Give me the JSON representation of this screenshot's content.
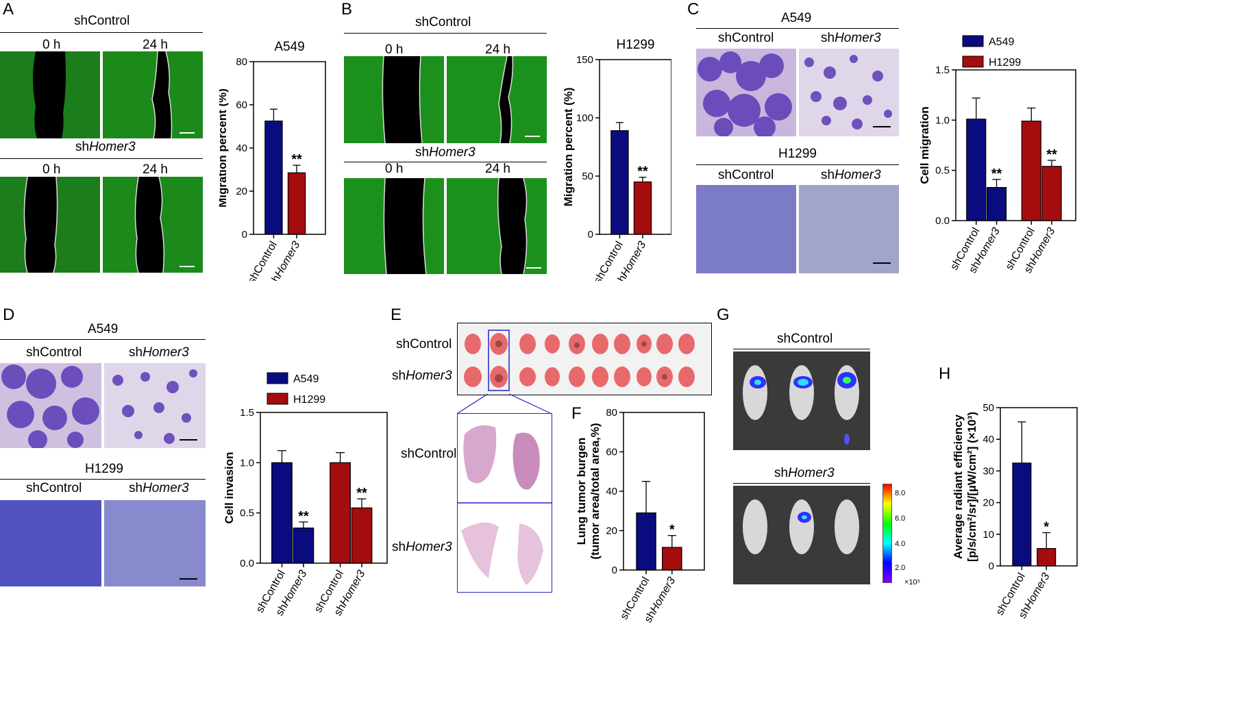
{
  "panels": {
    "A": {
      "letter": "A",
      "group1": "shControl",
      "group2_prefix": "sh",
      "group2_gene": "Homer3",
      "time0": "0 h",
      "time24": "24 h"
    },
    "B": {
      "letter": "B",
      "group1": "shControl",
      "group2_prefix": "sh",
      "group2_gene": "Homer3",
      "time0": "0 h",
      "time24": "24 h"
    },
    "C": {
      "letter": "C",
      "cell1": "A549",
      "cell2": "H1299",
      "group1": "shControl",
      "group2_prefix": "sh",
      "group2_gene": "Homer3"
    },
    "D": {
      "letter": "D",
      "cell1": "A549",
      "cell2": "H1299",
      "group1": "shControl",
      "group2_prefix": "sh",
      "group2_gene": "Homer3"
    },
    "E": {
      "letter": "E",
      "group1": "shControl",
      "group2_prefix": "sh",
      "group2_gene": "Homer3"
    },
    "F": {
      "letter": "F"
    },
    "G": {
      "letter": "G",
      "group1": "shControl",
      "group2_prefix": "sh",
      "group2_gene": "Homer3",
      "scale_ticks": [
        "8.0",
        "6.0",
        "4.0",
        "2.0"
      ],
      "scale_unit": "×10⁵"
    },
    "H": {
      "letter": "H"
    }
  },
  "colors": {
    "blue": "#0b0b80",
    "red": "#a30d0d",
    "green": "#28c428",
    "stain": "#5a3ab5"
  },
  "chart_data": [
    {
      "id": "A",
      "type": "bar",
      "title": "A549",
      "ylabel": "Migration percent (%)",
      "ylim": [
        0,
        80
      ],
      "yticks": [
        "0",
        "20",
        "40",
        "60",
        "80"
      ],
      "categories": [
        "shControl",
        "shHomer3"
      ],
      "series": [
        {
          "values": [
            52.5,
            28.5
          ],
          "errors": [
            5.5,
            3.5
          ]
        }
      ],
      "significance": [
        "",
        "**"
      ]
    },
    {
      "id": "B",
      "type": "bar",
      "title": "H1299",
      "ylabel": "Migration percent (%)",
      "ylim": [
        0,
        150
      ],
      "yticks": [
        "0",
        "50",
        "100",
        "150"
      ],
      "categories": [
        "shControl",
        "shHomer3"
      ],
      "series": [
        {
          "values": [
            89,
            45
          ],
          "errors": [
            7,
            4
          ]
        }
      ],
      "significance": [
        "",
        "**"
      ]
    },
    {
      "id": "C",
      "type": "bar",
      "title": "",
      "ylabel": "Cell migration",
      "ylim": [
        0,
        1.5
      ],
      "yticks": [
        "0.0",
        "0.5",
        "1.0",
        "1.5"
      ],
      "categories": [
        "shControl",
        "shHomer3",
        "shControl",
        "shHomer3"
      ],
      "legend": [
        "A549",
        "H1299"
      ],
      "series": [
        {
          "values": [
            1.01,
            0.33,
            0.99,
            0.54
          ],
          "errors": [
            0.21,
            0.08,
            0.13,
            0.06
          ]
        }
      ],
      "significance": [
        "",
        "**",
        "",
        "**"
      ]
    },
    {
      "id": "D",
      "type": "bar",
      "title": "",
      "ylabel": "Cell invasion",
      "ylim": [
        0,
        1.5
      ],
      "yticks": [
        "0.0",
        "0.5",
        "1.0",
        "1.5"
      ],
      "categories": [
        "shControl",
        "shHomer3",
        "shControl",
        "shHomer3"
      ],
      "legend": [
        "A549",
        "H1299"
      ],
      "series": [
        {
          "values": [
            1.0,
            0.35,
            1.0,
            0.55
          ],
          "errors": [
            0.12,
            0.06,
            0.1,
            0.09
          ]
        }
      ],
      "significance": [
        "",
        "**",
        "",
        "**"
      ]
    },
    {
      "id": "F",
      "type": "bar",
      "title": "",
      "ylabel": "Lung tumor burgen",
      "ylabel2": "(tumor area/total area,%)",
      "ylim": [
        0,
        80
      ],
      "yticks": [
        "0",
        "20",
        "40",
        "60",
        "80"
      ],
      "categories": [
        "shControl",
        "shHomer3"
      ],
      "series": [
        {
          "values": [
            29,
            11.5
          ],
          "errors": [
            16,
            6
          ]
        }
      ],
      "significance": [
        "",
        "*"
      ]
    },
    {
      "id": "H",
      "type": "bar",
      "title": "",
      "ylabel": "Average radiant efficiency",
      "ylabel2": "[p/s/cm²/sr]/[µW/cm²] (×10³)",
      "ylim": [
        0,
        50
      ],
      "yticks": [
        "0",
        "10",
        "20",
        "30",
        "40",
        "50"
      ],
      "categories": [
        "shControl",
        "shHomer3"
      ],
      "series": [
        {
          "values": [
            32.5,
            5.5
          ],
          "errors": [
            13,
            5
          ]
        }
      ],
      "significance": [
        "",
        "*"
      ]
    }
  ]
}
